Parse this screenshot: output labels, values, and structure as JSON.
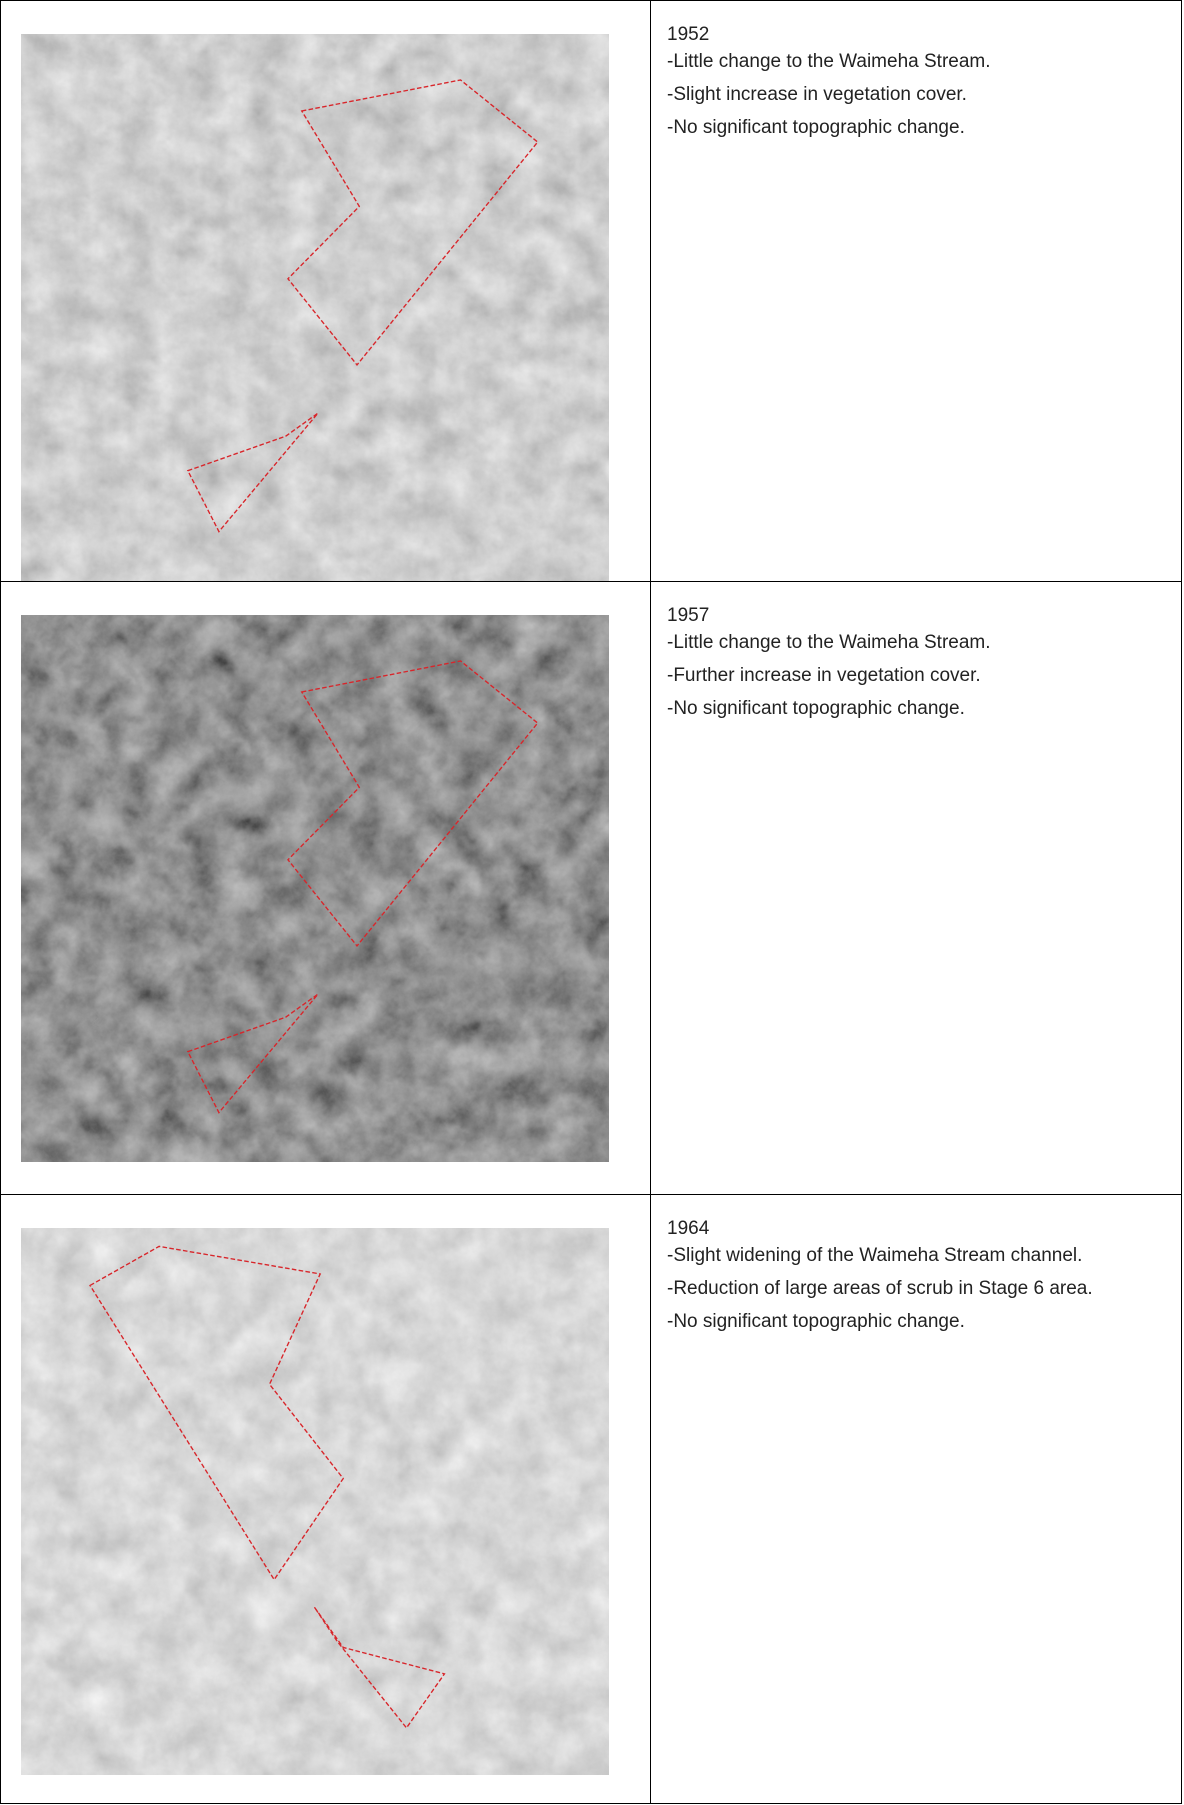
{
  "table": {
    "rows": [
      {
        "year": "1952",
        "notes": [
          "-Little change to the Waimeha Stream.",
          "-Slight increase in vegetation cover.",
          "-No significant topographic change."
        ]
      },
      {
        "year": "1957",
        "notes": [
          "-Little change to the Waimeha Stream.",
          "-Further increase in vegetation cover.",
          "-No significant topographic change."
        ]
      },
      {
        "year": "1964",
        "notes": [
          "-Slight widening of the Waimeha Stream channel.",
          "-Reduction of large areas of scrub in Stage 6 area.",
          "-No significant topographic change."
        ]
      }
    ]
  }
}
